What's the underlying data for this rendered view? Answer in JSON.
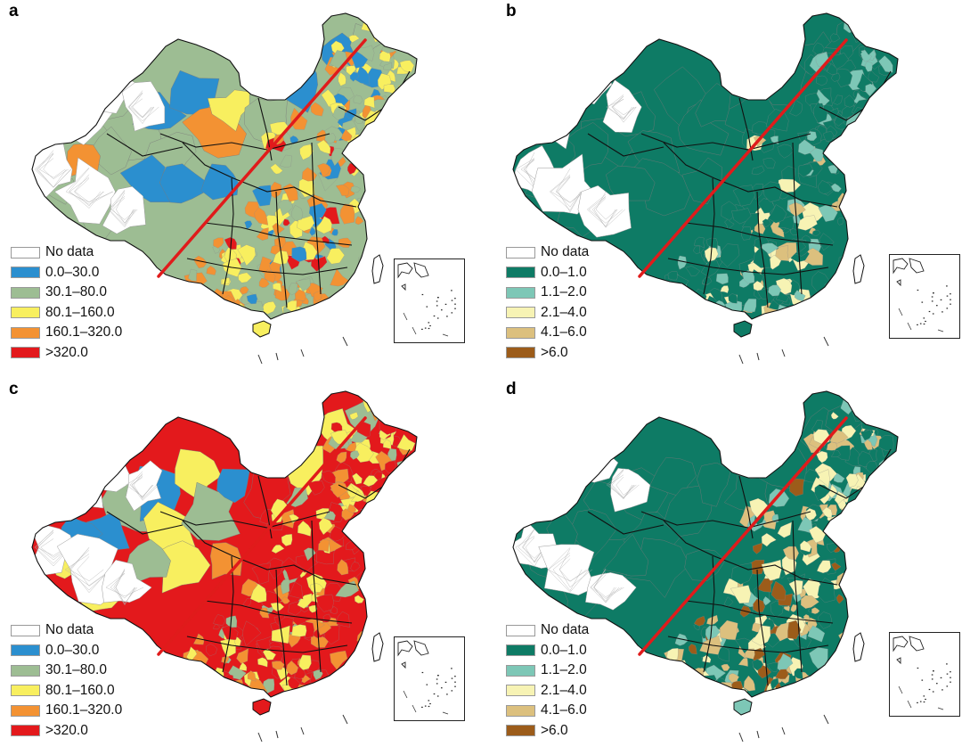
{
  "figure": {
    "panels": [
      {
        "id": "a",
        "letter": "a",
        "scheme": "warm",
        "legend": [
          {
            "label": "No data",
            "color": "#ffffff"
          },
          {
            "label": "0.0–30.0",
            "color": "#2b8fcf"
          },
          {
            "label": "30.1–80.0",
            "color": "#9dbd93"
          },
          {
            "label": "80.1–160.0",
            "color": "#f8ef5f"
          },
          {
            "label": "160.1–320.0",
            "color": "#f39233"
          },
          {
            "label": ">320.0",
            "color": "#e3191c"
          }
        ]
      },
      {
        "id": "b",
        "letter": "b",
        "scheme": "green",
        "legend": [
          {
            "label": "No data",
            "color": "#ffffff"
          },
          {
            "label": "0.0–1.0",
            "color": "#0e7b65"
          },
          {
            "label": "1.1–2.0",
            "color": "#7dc7b6"
          },
          {
            "label": "2.1–4.0",
            "color": "#f7f3b4"
          },
          {
            "label": "4.1–6.0",
            "color": "#dcc07e"
          },
          {
            "label": ">6.0",
            "color": "#9c5c1a"
          }
        ]
      },
      {
        "id": "c",
        "letter": "c",
        "scheme": "warm",
        "legend": [
          {
            "label": "No data",
            "color": "#ffffff"
          },
          {
            "label": "0.0–30.0",
            "color": "#2b8fcf"
          },
          {
            "label": "30.1–80.0",
            "color": "#9dbd93"
          },
          {
            "label": "80.1–160.0",
            "color": "#f8ef5f"
          },
          {
            "label": "160.1–320.0",
            "color": "#f39233"
          },
          {
            "label": ">320.0",
            "color": "#e3191c"
          }
        ]
      },
      {
        "id": "d",
        "letter": "d",
        "scheme": "green",
        "legend": [
          {
            "label": "No data",
            "color": "#ffffff"
          },
          {
            "label": "0.0–1.0",
            "color": "#0e7b65"
          },
          {
            "label": "1.1–2.0",
            "color": "#7dc7b6"
          },
          {
            "label": "2.1–4.0",
            "color": "#f7f3b4"
          },
          {
            "label": "4.1–6.0",
            "color": "#dcc07e"
          },
          {
            "label": ">6.0",
            "color": "#9c5c1a"
          }
        ]
      }
    ],
    "divide_line_color": "#e01b1b",
    "border_color": "#111111"
  }
}
